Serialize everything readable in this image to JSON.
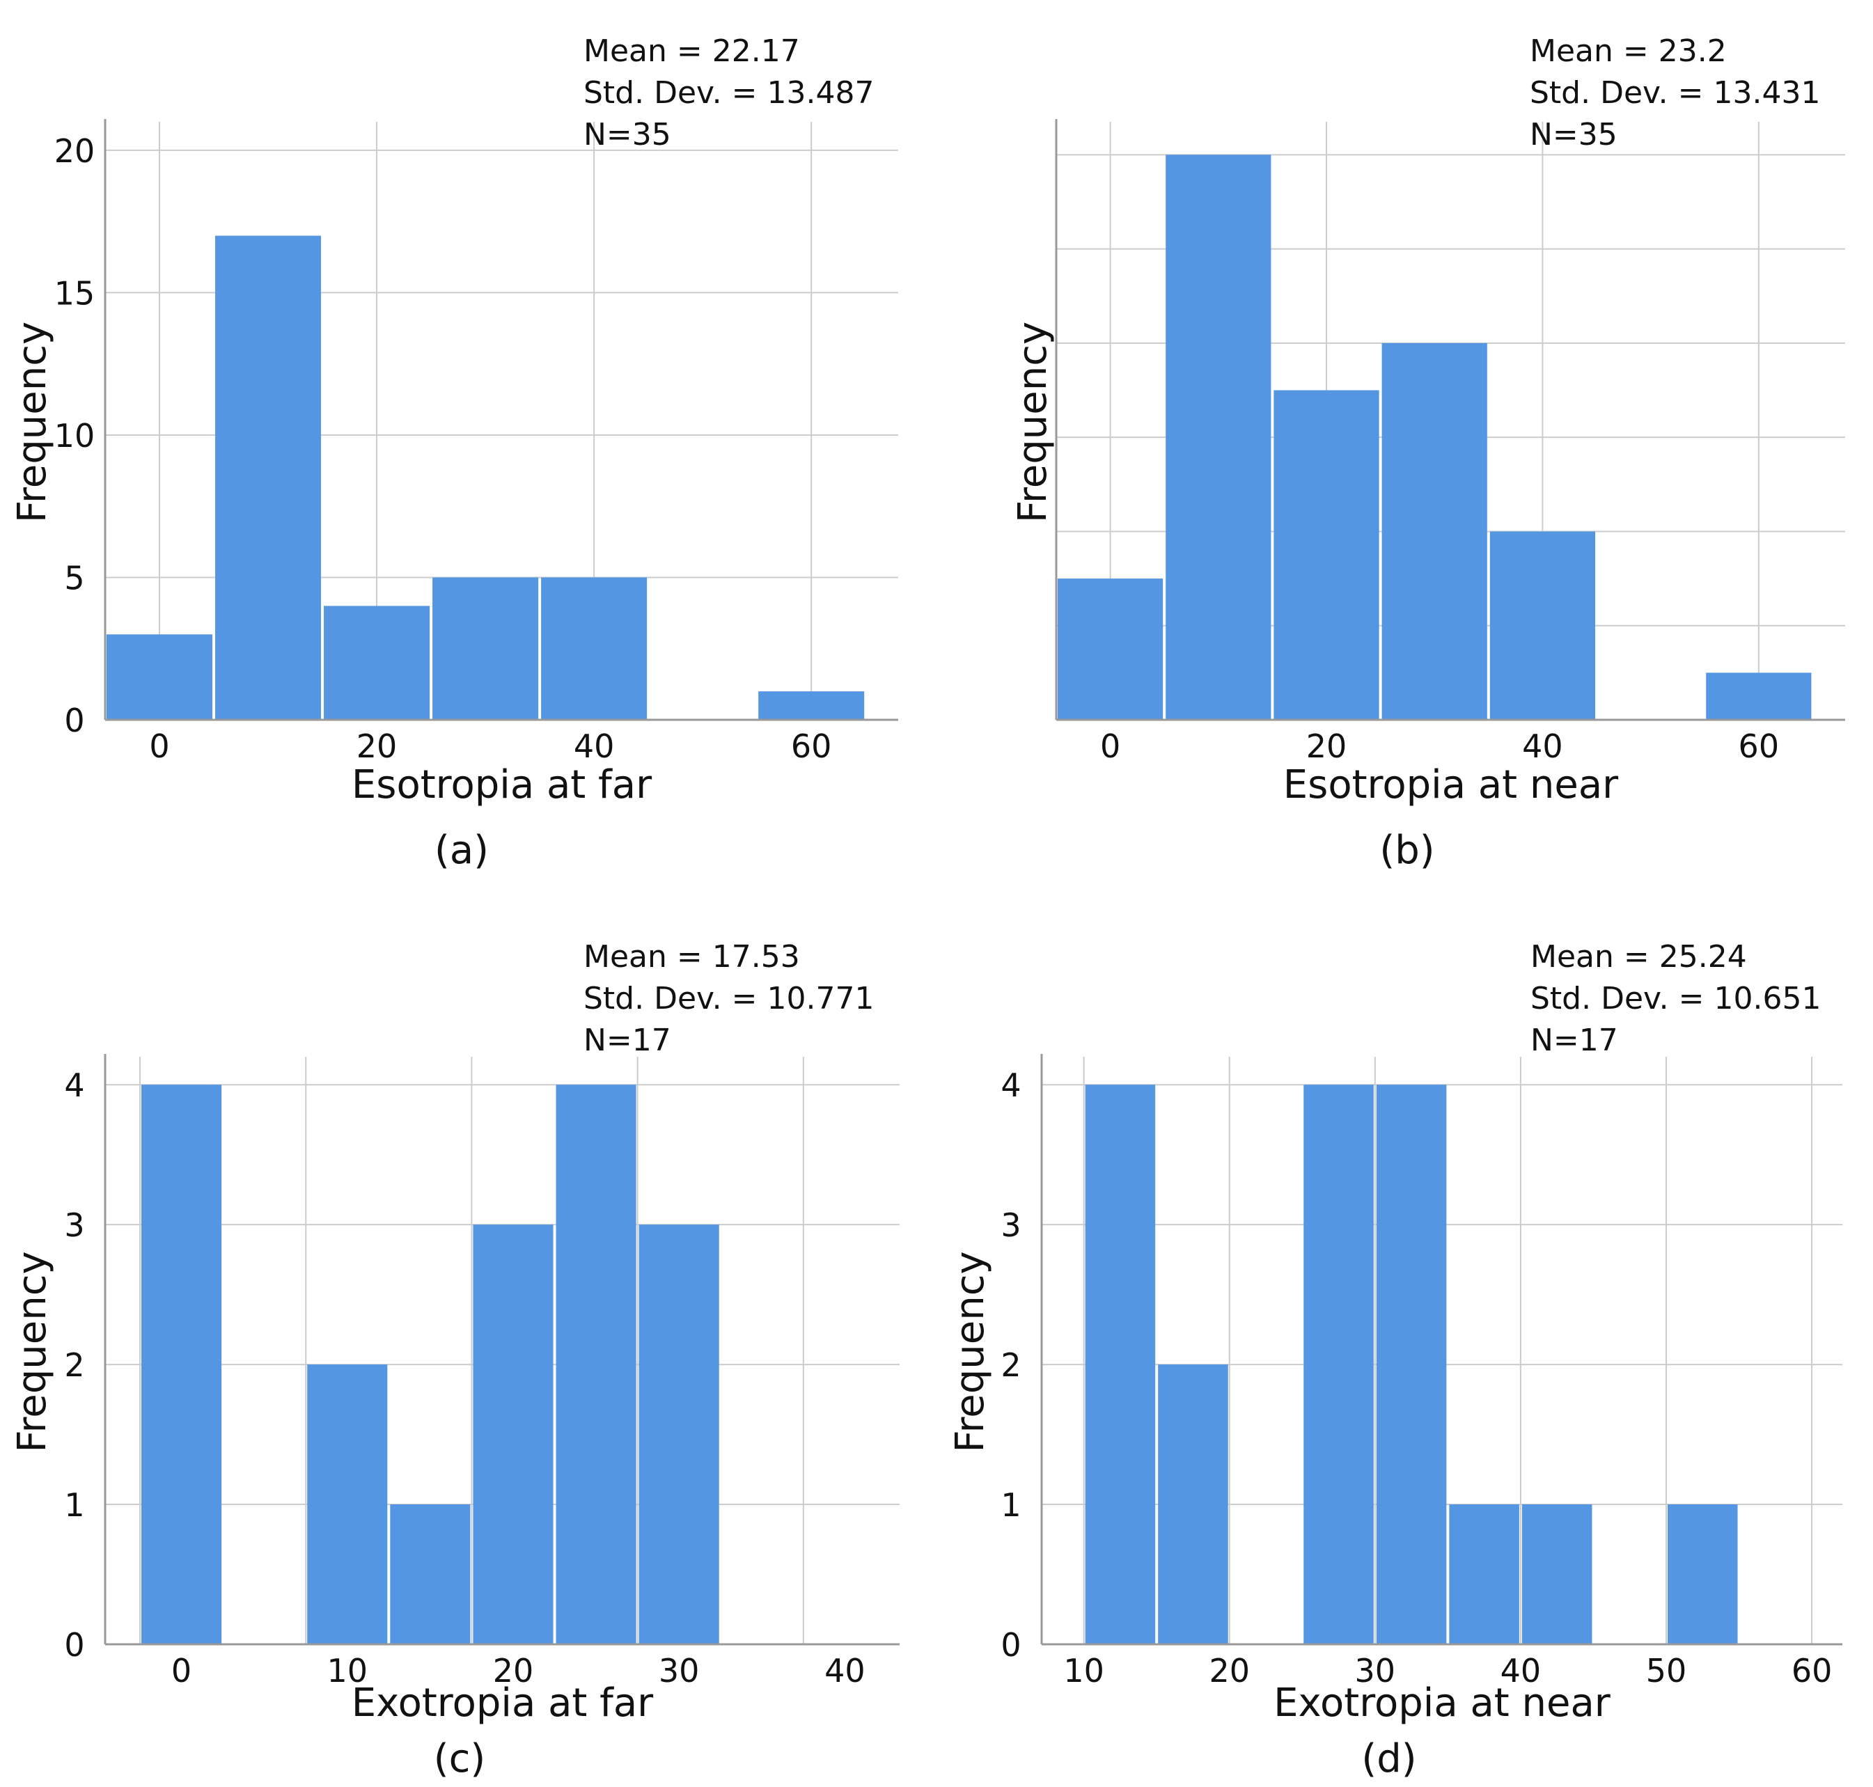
{
  "colors": {
    "bar": "#5596e3",
    "grid": "#cccccc",
    "axis": "#999999",
    "text": "#111111"
  },
  "chart_data": [
    {
      "id": "a",
      "type": "bar",
      "panel_label": "(a)",
      "xlabel": "Esotropia at far",
      "ylabel": "Frequency",
      "stats": {
        "mean": "Mean = 22.17",
        "sd": "Std. Dev. = 13.487",
        "n": "N=35"
      },
      "xlim": [
        -5,
        68
      ],
      "ylim": [
        0,
        21
      ],
      "xticks": [
        0,
        20,
        40,
        60
      ],
      "yticks": [
        0,
        5,
        10,
        15,
        20
      ],
      "xgrid": [
        0,
        20,
        40,
        60
      ],
      "ygrid": [
        5,
        10,
        15,
        20
      ],
      "show_y_tick_labels": true,
      "bars": [
        {
          "x0": -5,
          "x1": 5,
          "value": 3
        },
        {
          "x0": 5,
          "x1": 15,
          "value": 17
        },
        {
          "x0": 15,
          "x1": 25,
          "value": 4
        },
        {
          "x0": 25,
          "x1": 35,
          "value": 5
        },
        {
          "x0": 35,
          "x1": 45,
          "value": 5
        },
        {
          "x0": 55,
          "x1": 65,
          "value": 1
        }
      ]
    },
    {
      "id": "b",
      "type": "bar",
      "panel_label": "(b)",
      "xlabel": "Esotropia at near",
      "ylabel": "Frequency",
      "stats": {
        "mean": "Mean = 23.2",
        "sd": "Std. Dev. = 13.431",
        "n": "N=35"
      },
      "xlim": [
        -5,
        68
      ],
      "ylim": [
        0,
        12.7
      ],
      "xticks": [
        0,
        20,
        40,
        60
      ],
      "yticks": [],
      "xgrid": [
        0,
        20,
        40,
        60
      ],
      "ygrid": [
        2,
        4,
        6,
        8,
        10,
        12
      ],
      "show_y_tick_labels": false,
      "bars": [
        {
          "x0": -5,
          "x1": 5,
          "value": 3
        },
        {
          "x0": 5,
          "x1": 15,
          "value": 12
        },
        {
          "x0": 15,
          "x1": 25,
          "value": 7
        },
        {
          "x0": 25,
          "x1": 35,
          "value": 8
        },
        {
          "x0": 35,
          "x1": 45,
          "value": 4
        },
        {
          "x0": 55,
          "x1": 65,
          "value": 1
        }
      ]
    },
    {
      "id": "c",
      "type": "bar",
      "panel_label": "(c)",
      "xlabel": "Exotropia at far",
      "ylabel": "Frequency",
      "stats": {
        "mean": "Mean = 17.53",
        "sd": "Std. Dev. = 10.771",
        "n": "N=17"
      },
      "xlim": [
        -4.6,
        43.3
      ],
      "ylim": [
        0,
        4.2
      ],
      "xticks": [
        0,
        10,
        20,
        30,
        40
      ],
      "yticks": [
        0,
        1,
        2,
        3,
        4
      ],
      "xgrid": [
        -2.5,
        7.5,
        17.5,
        27.5,
        37.5
      ],
      "ygrid": [
        1,
        2,
        3,
        4
      ],
      "show_y_tick_labels": true,
      "bars": [
        {
          "x0": -2.5,
          "x1": 2.5,
          "value": 4
        },
        {
          "x0": 7.5,
          "x1": 12.5,
          "value": 2
        },
        {
          "x0": 12.5,
          "x1": 17.5,
          "value": 1
        },
        {
          "x0": 17.5,
          "x1": 22.5,
          "value": 3
        },
        {
          "x0": 22.5,
          "x1": 27.5,
          "value": 4
        },
        {
          "x0": 27.5,
          "x1": 32.5,
          "value": 3
        }
      ]
    },
    {
      "id": "d",
      "type": "bar",
      "panel_label": "(d)",
      "xlabel": "Exotropia at near",
      "ylabel": "Frequency",
      "stats": {
        "mean": "Mean = 25.24",
        "sd": "Std. Dev. = 10.651",
        "n": "N=17"
      },
      "xlim": [
        7.1,
        62.1
      ],
      "ylim": [
        0,
        4.2
      ],
      "xticks": [
        10,
        20,
        30,
        40,
        50,
        60
      ],
      "yticks": [
        0,
        1,
        2,
        3,
        4
      ],
      "xgrid": [
        10,
        20,
        30,
        40,
        50,
        60
      ],
      "ygrid": [
        1,
        2,
        3,
        4
      ],
      "show_y_tick_labels": true,
      "bars": [
        {
          "x0": 10,
          "x1": 15,
          "value": 4
        },
        {
          "x0": 15,
          "x1": 20,
          "value": 2
        },
        {
          "x0": 25,
          "x1": 30,
          "value": 4
        },
        {
          "x0": 30,
          "x1": 35,
          "value": 4
        },
        {
          "x0": 35,
          "x1": 40,
          "value": 1
        },
        {
          "x0": 40,
          "x1": 45,
          "value": 1
        },
        {
          "x0": 50,
          "x1": 55,
          "value": 1
        }
      ]
    }
  ]
}
